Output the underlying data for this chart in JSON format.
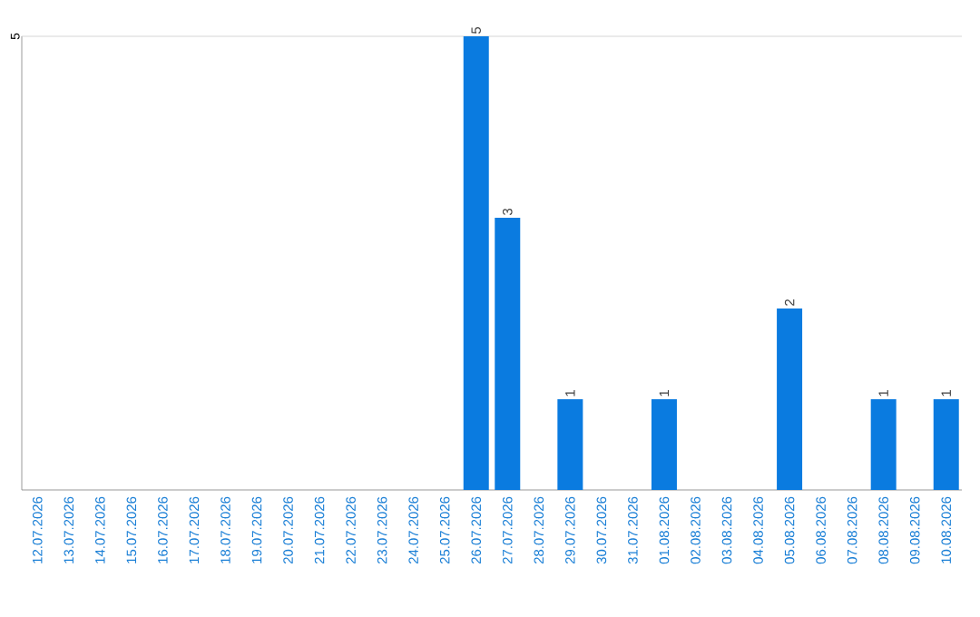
{
  "chart_data": {
    "type": "bar",
    "categories": [
      "12.07.2026",
      "13.07.2026",
      "14.07.2026",
      "15.07.2026",
      "16.07.2026",
      "17.07.2026",
      "18.07.2026",
      "19.07.2026",
      "20.07.2026",
      "21.07.2026",
      "22.07.2026",
      "23.07.2026",
      "24.07.2026",
      "25.07.2026",
      "26.07.2026",
      "27.07.2026",
      "28.07.2026",
      "29.07.2026",
      "30.07.2026",
      "31.07.2026",
      "01.08.2026",
      "02.08.2026",
      "03.08.2026",
      "04.08.2026",
      "05.08.2026",
      "06.08.2026",
      "07.08.2026",
      "08.08.2026",
      "09.08.2026",
      "10.08.2026"
    ],
    "values": [
      null,
      null,
      null,
      null,
      null,
      null,
      null,
      null,
      null,
      null,
      null,
      null,
      null,
      null,
      5,
      3,
      null,
      1,
      null,
      null,
      1,
      null,
      null,
      null,
      2,
      null,
      null,
      1,
      null,
      1
    ],
    "data_labels": true,
    "color": "#0a7be0",
    "ylim": [
      0,
      5
    ],
    "ref_lines": [
      {
        "axis": "y",
        "value": 5,
        "label": "5",
        "color": "#cccccc"
      }
    ]
  }
}
